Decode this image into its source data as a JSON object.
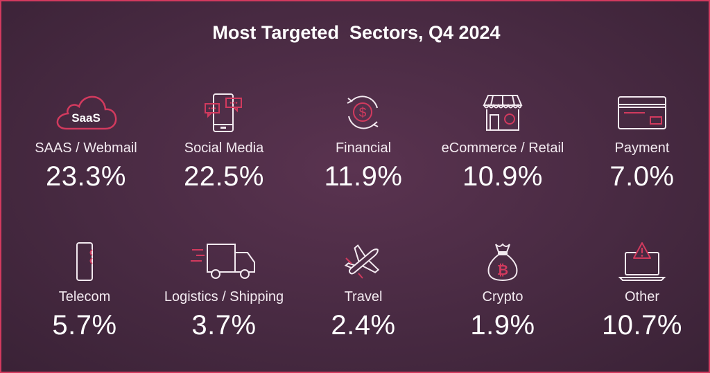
{
  "title": "Most Targeted  Sectors, Q4 2024",
  "colors": {
    "accent": "#d23a5e",
    "text": "#ffffff",
    "background": "#482a42"
  },
  "sectors": [
    {
      "label": "SAAS / Webmail",
      "value": "23.3%",
      "icon": "saas-cloud-icon",
      "icon_text": "SaaS"
    },
    {
      "label": "Social Media",
      "value": "22.5%",
      "icon": "social-media-phone-icon"
    },
    {
      "label": "Financial",
      "value": "11.9%",
      "icon": "dollar-cycle-icon"
    },
    {
      "label": "eCommerce / Retail",
      "value": "10.9%",
      "icon": "storefront-icon"
    },
    {
      "label": "Payment",
      "value": "7.0%",
      "icon": "credit-card-icon"
    },
    {
      "label": "Telecom",
      "value": "5.7%",
      "icon": "mobile-phone-icon"
    },
    {
      "label": "Logistics / Shipping",
      "value": "3.7%",
      "icon": "delivery-truck-icon"
    },
    {
      "label": "Travel",
      "value": "2.4%",
      "icon": "airplane-icon"
    },
    {
      "label": "Crypto",
      "value": "1.9%",
      "icon": "bitcoin-bag-icon"
    },
    {
      "label": "Other",
      "value": "10.7%",
      "icon": "laptop-warning-icon"
    }
  ]
}
